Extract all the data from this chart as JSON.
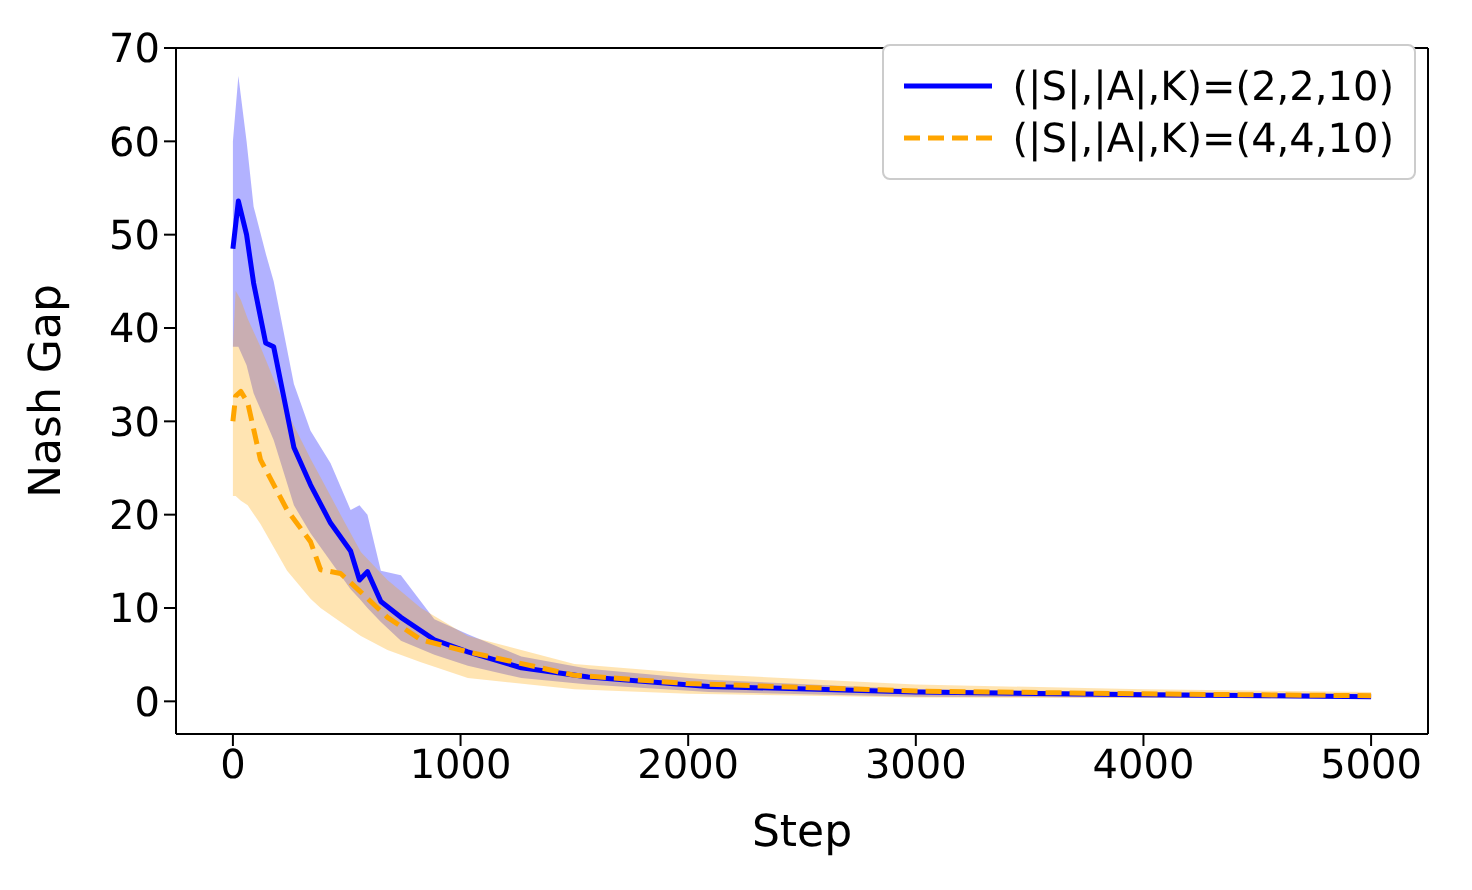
{
  "chart_data": {
    "type": "line",
    "xlabel": "Step",
    "ylabel": "Nash Gap",
    "xlim": [
      -250,
      5250
    ],
    "ylim": [
      -3.5,
      70
    ],
    "xticks": [
      0,
      1000,
      2000,
      3000,
      4000,
      5000
    ],
    "yticks": [
      0,
      10,
      20,
      30,
      40,
      50,
      60,
      70
    ],
    "legend": "top right",
    "series": [
      {
        "name": "(|S|,|A|,K)=(2,2,10)",
        "color": "#0000ff",
        "line_style": "solid",
        "x": [
          0,
          24,
          60,
          91,
          144,
          179,
          268,
          341,
          429,
          517,
          556,
          591,
          650,
          738,
          885,
          1032,
          1267,
          1561,
          2090,
          3000,
          4000,
          5000
        ],
        "values": [
          48.5,
          53.6,
          50,
          44.8,
          38.4,
          38,
          27.2,
          23.2,
          19.1,
          16.1,
          13,
          13.9,
          10.7,
          9,
          6.6,
          5.3,
          3.6,
          2.6,
          1.6,
          1.0,
          0.7,
          0.5
        ],
        "upper": [
          60,
          67,
          60,
          53,
          48,
          45,
          34,
          29,
          25.5,
          20.5,
          21,
          20,
          14,
          13.5,
          8.8,
          7.2,
          4.8,
          3.5,
          2.3,
          1.3,
          1.0,
          0.8
        ],
        "lower": [
          38,
          38,
          36,
          33,
          30,
          28,
          21,
          18,
          15,
          12,
          11,
          10,
          8.5,
          6.5,
          5,
          3.8,
          2.5,
          1.8,
          1.0,
          0.5,
          0.4,
          0.3
        ]
      },
      {
        "name": "(|S|,|A|,K)=(4,4,10)",
        "color": "#ffa500",
        "line_style": "dashed",
        "x": [
          0,
          12,
          35,
          65,
          121,
          238,
          341,
          385,
          473,
          562,
          679,
          826,
          1032,
          1500,
          2000,
          3000,
          4000,
          5000
        ],
        "values": [
          30,
          32.7,
          33.2,
          32,
          25.9,
          20.5,
          17.1,
          14.1,
          13.7,
          11.7,
          9,
          6.6,
          5.3,
          2.8,
          1.9,
          1.1,
          0.8,
          0.6
        ],
        "upper": [
          38,
          44,
          43,
          41,
          38,
          31,
          26,
          24,
          20,
          16,
          13,
          10,
          7,
          4,
          3,
          1.8,
          1.3,
          1.0
        ],
        "lower": [
          22,
          22,
          21.5,
          21,
          19,
          14,
          11,
          10,
          8.5,
          7,
          5.5,
          4.2,
          2.5,
          1.3,
          0.8,
          0.4,
          0.35,
          0.3
        ]
      }
    ]
  }
}
